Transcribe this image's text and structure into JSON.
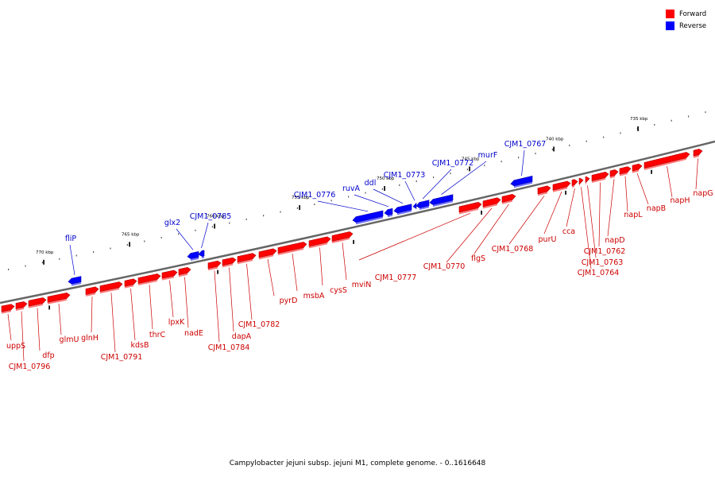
{
  "colors": {
    "forward": "#ff0000",
    "forward_dark": "#b30000",
    "forward_light": "#ff7a7a",
    "reverse": "#0000ff",
    "reverse_dark": "#0000a8",
    "reverse_light": "#7070ff",
    "label_forward": "#cc0000",
    "label_reverse": "#0000cc",
    "backbone": "#666666"
  },
  "legend": {
    "forward_label": "Forward",
    "reverse_label": "Reverse"
  },
  "caption": "Campylobacter jejuni subsp. jejuni M1, complete genome. - 0..1616648",
  "scale_ticks": [
    {
      "label": "735 kbp"
    },
    {
      "label": "740 kbp"
    },
    {
      "label": "745 kbp"
    },
    {
      "label": "750 kbp"
    },
    {
      "label": "755 kbp"
    },
    {
      "label": "760 kbp"
    },
    {
      "label": "765 kbp"
    },
    {
      "label": "770 kbp"
    }
  ],
  "reverse_genes": [
    "fliP",
    "glx2",
    "CJM1_0785",
    "CJM1_0776",
    "ruvA",
    "ddl",
    "CJM1_0773",
    "CJM1_0772",
    "murF",
    "CJM1_0767"
  ],
  "forward_genes": [
    "uppS",
    "CJM1_0796",
    "dfp",
    "glmU",
    "glnH",
    "CJM1_0791",
    "kdsB",
    "thrC",
    "lpxK",
    "nadE",
    "CJM1_0784",
    "dapA",
    "CJM1_0782",
    "pyrD",
    "msbA",
    "cysS",
    "mviN",
    "CJM1_0777",
    "CJM1_0770",
    "flgS",
    "CJM1_0768",
    "purU",
    "cca",
    "CJM1_0764",
    "CJM1_0763",
    "CJM1_0762",
    "napD",
    "napL",
    "napB",
    "napH",
    "napG"
  ]
}
